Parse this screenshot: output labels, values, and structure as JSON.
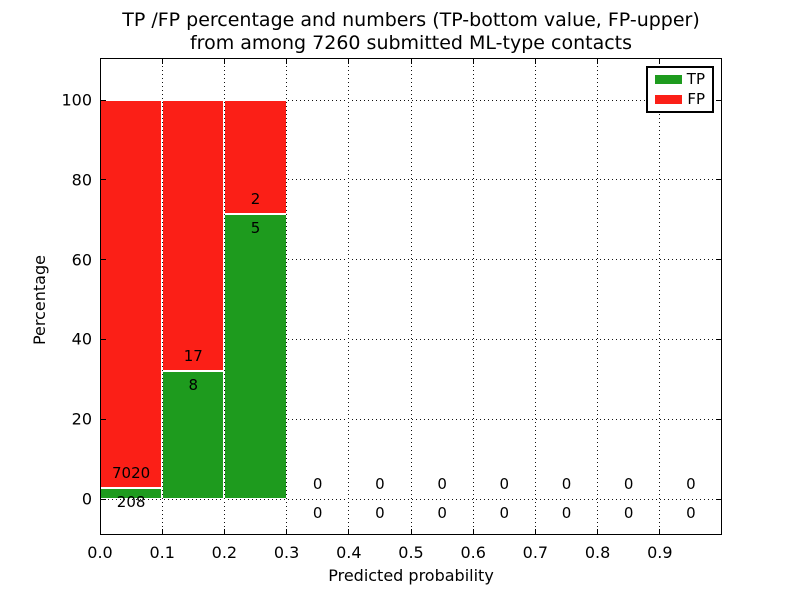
{
  "figure": {
    "title_line1": "TP /FP percentage and numbers (TP-bottom value, FP-upper)",
    "title_line2": "from among 7260 submitted ML-type contacts"
  },
  "chart_data": {
    "type": "bar",
    "stacked": true,
    "title": "TP /FP percentage and numbers (TP-bottom value, FP-upper) from among 7260 submitted ML-type contacts",
    "xlabel": "Predicted probability",
    "ylabel": "Percentage",
    "xlim": [
      0,
      1
    ],
    "ylim": [
      -9,
      110.5
    ],
    "grid": "dotted both axes",
    "legend_position": "upper right",
    "colors": {
      "tp": "#1e9b1e",
      "fp": "#fb1f17"
    },
    "legend": {
      "entries": [
        {
          "label": "TP",
          "color": "#1e9b1e"
        },
        {
          "label": "FP",
          "color": "#fb1f17"
        }
      ]
    },
    "xticks": [
      {
        "value": 0.0,
        "label": "0.0"
      },
      {
        "value": 0.1,
        "label": "0.1"
      },
      {
        "value": 0.2,
        "label": "0.2"
      },
      {
        "value": 0.3,
        "label": "0.3"
      },
      {
        "value": 0.4,
        "label": "0.4"
      },
      {
        "value": 0.5,
        "label": "0.5"
      },
      {
        "value": 0.6,
        "label": "0.6"
      },
      {
        "value": 0.7,
        "label": "0.7"
      },
      {
        "value": 0.8,
        "label": "0.8"
      },
      {
        "value": 0.9,
        "label": "0.9"
      }
    ],
    "yticks": [
      {
        "value": 0,
        "label": "0"
      },
      {
        "value": 20,
        "label": "20"
      },
      {
        "value": 40,
        "label": "40"
      },
      {
        "value": 60,
        "label": "60"
      },
      {
        "value": 80,
        "label": "80"
      },
      {
        "value": 100,
        "label": "100"
      }
    ],
    "bins": [
      {
        "x0": 0.0,
        "x1": 0.1,
        "tp": 208,
        "fp": 7020,
        "tp_pct": 2.88,
        "fp_pct": 97.12
      },
      {
        "x0": 0.1,
        "x1": 0.2,
        "tp": 8,
        "fp": 17,
        "tp_pct": 32.0,
        "fp_pct": 68.0
      },
      {
        "x0": 0.2,
        "x1": 0.3,
        "tp": 5,
        "fp": 2,
        "tp_pct": 71.43,
        "fp_pct": 28.57
      },
      {
        "x0": 0.3,
        "x1": 0.4,
        "tp": 0,
        "fp": 0
      },
      {
        "x0": 0.4,
        "x1": 0.5,
        "tp": 0,
        "fp": 0
      },
      {
        "x0": 0.5,
        "x1": 0.6,
        "tp": 0,
        "fp": 0
      },
      {
        "x0": 0.6,
        "x1": 0.7,
        "tp": 0,
        "fp": 0
      },
      {
        "x0": 0.7,
        "x1": 0.8,
        "tp": 0,
        "fp": 0
      },
      {
        "x0": 0.8,
        "x1": 0.9,
        "tp": 0,
        "fp": 0
      },
      {
        "x0": 0.9,
        "x1": 1.0,
        "tp": 0,
        "fp": 0
      }
    ]
  }
}
